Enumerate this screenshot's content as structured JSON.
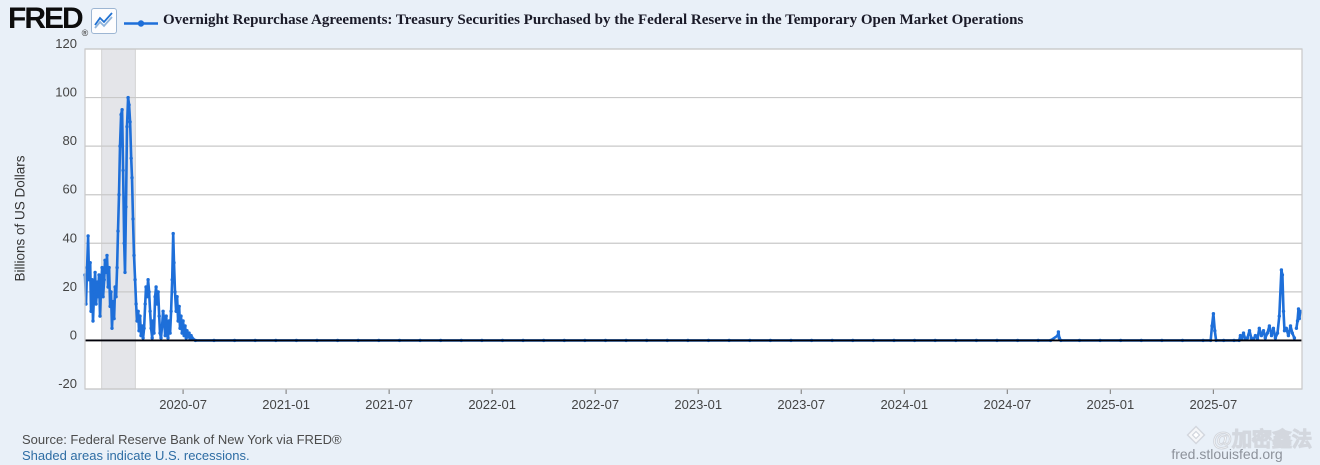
{
  "header": {
    "logo_text": "FRED",
    "logo_reg": "®"
  },
  "footer": {
    "source": "Source: Federal Reserve Bank of New York via FRED®",
    "note": "Shaded areas indicate U.S. recessions.",
    "watermark_handle": "@加密鑫法",
    "watermark_url": "fred.stlouisfed.org"
  },
  "chart_data": {
    "type": "line",
    "title": "Overnight Repurchase Agreements: Treasury Securities Purchased by the Federal Reserve in the Temporary Open Market Operations",
    "xlabel": "",
    "ylabel": "Billions of US Dollars",
    "legend_position": "top",
    "grid": "horizontal-only",
    "x_domain": [
      2020.024,
      2025.93
    ],
    "y_domain": [
      -20,
      120
    ],
    "x_ticks": [
      {
        "v": 2020.5,
        "label": "2020-07"
      },
      {
        "v": 2021.0,
        "label": "2021-01"
      },
      {
        "v": 2021.5,
        "label": "2021-07"
      },
      {
        "v": 2022.0,
        "label": "2022-01"
      },
      {
        "v": 2022.5,
        "label": "2022-07"
      },
      {
        "v": 2023.0,
        "label": "2023-01"
      },
      {
        "v": 2023.5,
        "label": "2023-07"
      },
      {
        "v": 2024.0,
        "label": "2024-01"
      },
      {
        "v": 2024.5,
        "label": "2024-07"
      },
      {
        "v": 2025.0,
        "label": "2025-01"
      },
      {
        "v": 2025.5,
        "label": "2025-07"
      }
    ],
    "y_ticks": [
      {
        "v": 120,
        "label": "120"
      },
      {
        "v": 100,
        "label": "100"
      },
      {
        "v": 80,
        "label": "80"
      },
      {
        "v": 60,
        "label": "60"
      },
      {
        "v": 40,
        "label": "40"
      },
      {
        "v": 20,
        "label": "20"
      },
      {
        "v": 0,
        "label": "0"
      },
      {
        "v": -20,
        "label": "-20"
      }
    ],
    "recession_bands": [
      {
        "start": 2020.105,
        "end": 2020.268
      }
    ],
    "zero_line": 0,
    "colors": {
      "series": "#1e6fd9",
      "grid": "#c9c9c9",
      "recession": "#e4e5e9",
      "zero_line": "#000008",
      "plot_bg": "#ffffff",
      "page_bg": "#e9f0f8"
    },
    "series": [
      {
        "name": "Overnight Repurchase Agreements: Treasury Securities Purchased by the Federal Reserve in the Temporary Open Market Operations",
        "color": "#1e6fd9",
        "points": [
          [
            2020.024,
            27
          ],
          [
            2020.029,
            15
          ],
          [
            2020.034,
            30
          ],
          [
            2020.039,
            43
          ],
          [
            2020.044,
            25
          ],
          [
            2020.049,
            32
          ],
          [
            2020.053,
            12
          ],
          [
            2020.058,
            25
          ],
          [
            2020.063,
            8
          ],
          [
            2020.068,
            20
          ],
          [
            2020.073,
            28
          ],
          [
            2020.078,
            15
          ],
          [
            2020.083,
            24
          ],
          [
            2020.087,
            18
          ],
          [
            2020.092,
            27
          ],
          [
            2020.097,
            10
          ],
          [
            2020.102,
            22
          ],
          [
            2020.107,
            30
          ],
          [
            2020.112,
            18
          ],
          [
            2020.117,
            25
          ],
          [
            2020.121,
            33
          ],
          [
            2020.126,
            28
          ],
          [
            2020.131,
            35
          ],
          [
            2020.136,
            22
          ],
          [
            2020.141,
            30
          ],
          [
            2020.146,
            14
          ],
          [
            2020.15,
            20
          ],
          [
            2020.155,
            5
          ],
          [
            2020.16,
            16
          ],
          [
            2020.165,
            9
          ],
          [
            2020.17,
            22
          ],
          [
            2020.175,
            18
          ],
          [
            2020.18,
            30
          ],
          [
            2020.184,
            45
          ],
          [
            2020.189,
            60
          ],
          [
            2020.194,
            80
          ],
          [
            2020.199,
            93
          ],
          [
            2020.204,
            95
          ],
          [
            2020.209,
            70
          ],
          [
            2020.214,
            40
          ],
          [
            2020.218,
            28
          ],
          [
            2020.223,
            55
          ],
          [
            2020.228,
            88
          ],
          [
            2020.233,
            100
          ],
          [
            2020.238,
            97
          ],
          [
            2020.243,
            90
          ],
          [
            2020.248,
            75
          ],
          [
            2020.252,
            67
          ],
          [
            2020.257,
            50
          ],
          [
            2020.262,
            35
          ],
          [
            2020.267,
            25
          ],
          [
            2020.272,
            15
          ],
          [
            2020.277,
            8
          ],
          [
            2020.282,
            12
          ],
          [
            2020.286,
            4
          ],
          [
            2020.291,
            10
          ],
          [
            2020.296,
            2
          ],
          [
            2020.301,
            6
          ],
          [
            2020.306,
            1
          ],
          [
            2020.311,
            5
          ],
          [
            2020.316,
            15
          ],
          [
            2020.32,
            22
          ],
          [
            2020.325,
            18
          ],
          [
            2020.33,
            25
          ],
          [
            2020.335,
            20
          ],
          [
            2020.34,
            12
          ],
          [
            2020.345,
            5
          ],
          [
            2020.35,
            1
          ],
          [
            2020.354,
            8
          ],
          [
            2020.359,
            3
          ],
          [
            2020.364,
            18
          ],
          [
            2020.369,
            22
          ],
          [
            2020.374,
            15
          ],
          [
            2020.379,
            20
          ],
          [
            2020.384,
            10
          ],
          [
            2020.388,
            3
          ],
          [
            2020.393,
            1
          ],
          [
            2020.398,
            6
          ],
          [
            2020.403,
            12
          ],
          [
            2020.408,
            8
          ],
          [
            2020.413,
            2
          ],
          [
            2020.418,
            10
          ],
          [
            2020.422,
            5
          ],
          [
            2020.427,
            1
          ],
          [
            2020.432,
            8
          ],
          [
            2020.437,
            3
          ],
          [
            2020.442,
            12
          ],
          [
            2020.447,
            25
          ],
          [
            2020.452,
            44
          ],
          [
            2020.456,
            32
          ],
          [
            2020.461,
            20
          ],
          [
            2020.466,
            12
          ],
          [
            2020.471,
            18
          ],
          [
            2020.476,
            8
          ],
          [
            2020.481,
            14
          ],
          [
            2020.485,
            5
          ],
          [
            2020.49,
            10
          ],
          [
            2020.495,
            3
          ],
          [
            2020.5,
            8
          ],
          [
            2020.505,
            2
          ],
          [
            2020.51,
            6
          ],
          [
            2020.515,
            1
          ],
          [
            2020.519,
            4
          ],
          [
            2020.524,
            1.5
          ],
          [
            2020.529,
            3
          ],
          [
            2020.534,
            0.5
          ],
          [
            2020.539,
            2
          ],
          [
            2020.544,
            1
          ],
          [
            2020.549,
            0.5
          ],
          [
            2020.56,
            0
          ],
          [
            2020.65,
            0
          ],
          [
            2020.75,
            0
          ],
          [
            2020.85,
            0
          ],
          [
            2020.95,
            0
          ],
          [
            2021.05,
            0
          ],
          [
            2021.15,
            0
          ],
          [
            2021.25,
            0
          ],
          [
            2021.35,
            0
          ],
          [
            2021.45,
            0
          ],
          [
            2021.55,
            0
          ],
          [
            2021.65,
            0
          ],
          [
            2021.75,
            0
          ],
          [
            2021.85,
            0
          ],
          [
            2021.95,
            0
          ],
          [
            2022.05,
            0
          ],
          [
            2022.15,
            0
          ],
          [
            2022.25,
            0
          ],
          [
            2022.35,
            0
          ],
          [
            2022.45,
            0
          ],
          [
            2022.55,
            0
          ],
          [
            2022.65,
            0
          ],
          [
            2022.75,
            0
          ],
          [
            2022.85,
            0
          ],
          [
            2022.95,
            0
          ],
          [
            2023.05,
            0
          ],
          [
            2023.15,
            0
          ],
          [
            2023.25,
            0
          ],
          [
            2023.35,
            0
          ],
          [
            2023.45,
            0
          ],
          [
            2023.55,
            0
          ],
          [
            2023.65,
            0
          ],
          [
            2023.75,
            0
          ],
          [
            2023.85,
            0
          ],
          [
            2023.95,
            0
          ],
          [
            2024.05,
            0
          ],
          [
            2024.15,
            0
          ],
          [
            2024.25,
            0
          ],
          [
            2024.35,
            0
          ],
          [
            2024.45,
            0
          ],
          [
            2024.55,
            0
          ],
          [
            2024.65,
            0
          ],
          [
            2024.71,
            0
          ],
          [
            2024.745,
            2
          ],
          [
            2024.748,
            3.5
          ],
          [
            2024.752,
            1
          ],
          [
            2024.76,
            0
          ],
          [
            2024.85,
            0
          ],
          [
            2024.95,
            0
          ],
          [
            2025.05,
            0
          ],
          [
            2025.15,
            0
          ],
          [
            2025.25,
            0
          ],
          [
            2025.35,
            0
          ],
          [
            2025.45,
            0
          ],
          [
            2025.487,
            0
          ],
          [
            2025.493,
            6
          ],
          [
            2025.5,
            11
          ],
          [
            2025.507,
            4
          ],
          [
            2025.513,
            0
          ],
          [
            2025.55,
            0
          ],
          [
            2025.6,
            0
          ],
          [
            2025.625,
            0
          ],
          [
            2025.631,
            2
          ],
          [
            2025.637,
            0.5
          ],
          [
            2025.646,
            3
          ],
          [
            2025.655,
            0.5
          ],
          [
            2025.665,
            1
          ],
          [
            2025.675,
            4
          ],
          [
            2025.684,
            1
          ],
          [
            2025.694,
            0.5
          ],
          [
            2025.704,
            2
          ],
          [
            2025.714,
            0.5
          ],
          [
            2025.723,
            5
          ],
          [
            2025.733,
            2
          ],
          [
            2025.743,
            4
          ],
          [
            2025.752,
            1
          ],
          [
            2025.762,
            3
          ],
          [
            2025.772,
            6
          ],
          [
            2025.782,
            2
          ],
          [
            2025.791,
            5
          ],
          [
            2025.801,
            1
          ],
          [
            2025.811,
            3
          ],
          [
            2025.82,
            10
          ],
          [
            2025.83,
            29
          ],
          [
            2025.835,
            27
          ],
          [
            2025.84,
            12
          ],
          [
            2025.845,
            4
          ],
          [
            2025.854,
            5
          ],
          [
            2025.864,
            2
          ],
          [
            2025.874,
            6
          ],
          [
            2025.883,
            3
          ],
          [
            2025.893,
            1
          ],
          null,
          [
            2025.903,
            5
          ],
          [
            2025.908,
            8
          ],
          [
            2025.913,
            13
          ],
          [
            2025.917,
            9
          ],
          [
            2025.922,
            12
          ]
        ]
      }
    ]
  }
}
